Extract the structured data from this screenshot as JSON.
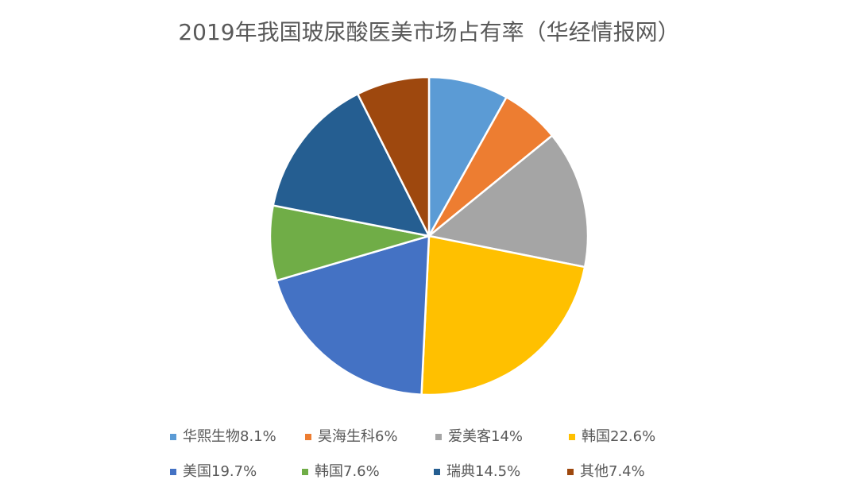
{
  "chart_data": {
    "type": "pie",
    "title": "2019年我国玻尿酸医美市场占有率（华经情报网）",
    "categories": [
      "华熙生物8.1%",
      "昊海生科6%",
      "爱美客14%",
      "韩国22.6%",
      "美国19.7%",
      "韩国7.6%",
      "瑞典14.5%",
      "其他7.4%"
    ],
    "values": [
      8.1,
      6,
      14,
      22.6,
      19.7,
      7.6,
      14.5,
      7.4
    ],
    "colors": [
      "#5b9bd5",
      "#ed7d31",
      "#a5a5a5",
      "#ffc000",
      "#4472c4",
      "#70ad47",
      "#255e91",
      "#9e480e"
    ],
    "legend": "bottom"
  }
}
